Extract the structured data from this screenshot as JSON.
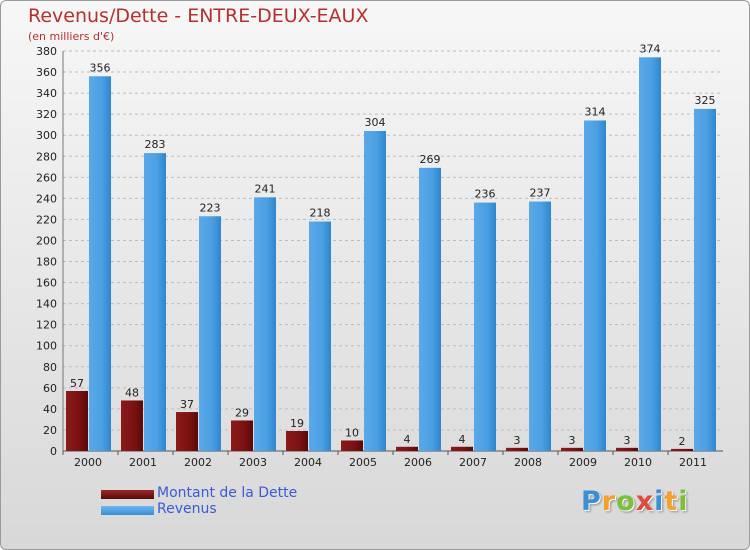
{
  "header": {
    "title": "Revenus/Dette - ENTRE-DEUX-EAUX",
    "subtitle": "(en milliers d'€)"
  },
  "legend": {
    "debt_label": "Montant de la Dette",
    "revenue_label": "Revenus"
  },
  "logo": {
    "letters": [
      "P",
      "r",
      "o",
      "x",
      "i",
      "t",
      "i"
    ],
    "colors": [
      "#3b8fd6",
      "#f2a12c",
      "#7cbf3a",
      "#e24b3b",
      "#3b8fd6",
      "#f2a12c",
      "#7cbf3a"
    ]
  },
  "colors": {
    "debt": "#7a1212",
    "revenue": "#4a9fe2",
    "title": "#b53030"
  },
  "chart_data": {
    "type": "bar",
    "title": "Revenus/Dette - ENTRE-DEUX-EAUX",
    "ylabel": "(en milliers d'€)",
    "xlabel": "",
    "ylim": [
      0,
      380
    ],
    "ytick_step": 20,
    "grid": true,
    "legend_position": "bottom-left",
    "categories": [
      "2000",
      "2001",
      "2002",
      "2003",
      "2004",
      "2005",
      "2006",
      "2007",
      "2008",
      "2009",
      "2010",
      "2011"
    ],
    "series": [
      {
        "name": "Montant de la Dette",
        "values": [
          57,
          48,
          37,
          29,
          19,
          10,
          4,
          4,
          3,
          3,
          3,
          2
        ]
      },
      {
        "name": "Revenus",
        "values": [
          356,
          283,
          223,
          241,
          218,
          304,
          269,
          236,
          237,
          314,
          374,
          325
        ]
      }
    ]
  }
}
